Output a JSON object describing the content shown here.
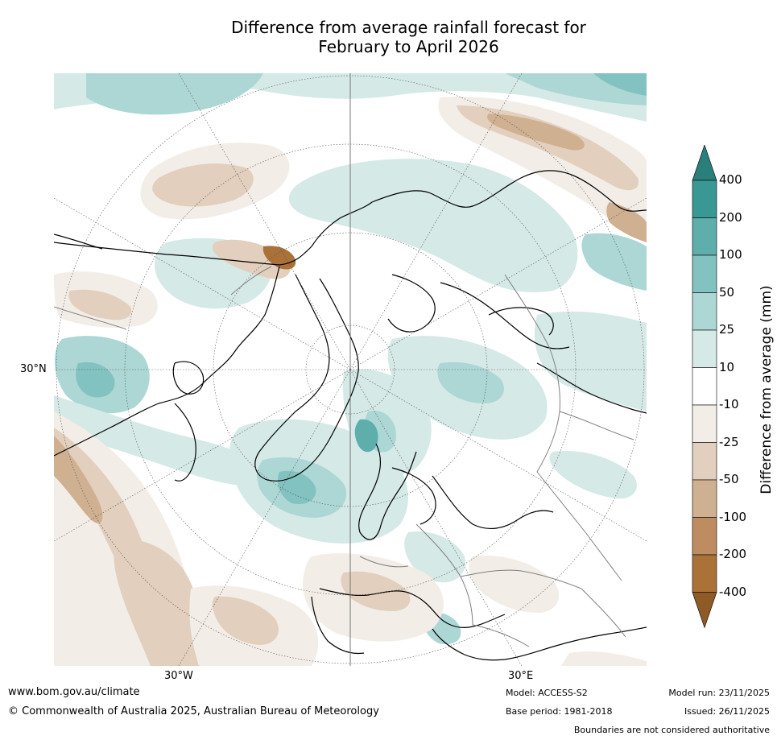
{
  "title": {
    "line1": "Difference from average rainfall forecast for",
    "line2": "February to April 2026"
  },
  "map": {
    "projection": "north-polar-stereographic",
    "lat_label": "30°N",
    "lon_labels": [
      "30°W",
      "30°E"
    ]
  },
  "colorbar": {
    "title": "Difference from average (mm)",
    "ticks": [
      "400",
      "200",
      "100",
      "50",
      "25",
      "10",
      "-10",
      "-25",
      "-50",
      "-100",
      "-200",
      "-400"
    ],
    "bins": [
      {
        "range": ">400",
        "color": "#2a7f7a"
      },
      {
        "range": "200–400",
        "color": "#3a9894"
      },
      {
        "range": "100–200",
        "color": "#5eaeac"
      },
      {
        "range": "50–100",
        "color": "#82c2c0"
      },
      {
        "range": "25–50",
        "color": "#acd7d5"
      },
      {
        "range": "10–25",
        "color": "#d5e9e7"
      },
      {
        "range": "-10–10",
        "color": "#ffffff"
      },
      {
        "range": "-25–-10",
        "color": "#f2ede7"
      },
      {
        "range": "-50–-25",
        "color": "#e2cfbd"
      },
      {
        "range": "-100–-50",
        "color": "#cfb091"
      },
      {
        "range": "-200–-100",
        "color": "#bd8c60"
      },
      {
        "range": "-400–-200",
        "color": "#aa7239"
      },
      {
        "range": "<-400",
        "color": "#8e5a25"
      }
    ]
  },
  "footer": {
    "website": "www.bom.gov.au/climate",
    "copyright": "© Commonwealth of Australia 2025, Australian Bureau of Meteorology",
    "model": "Model: ACCESS-S2",
    "base_period": "Base period: 1981-2018",
    "model_run": "Model run: 23/11/2025",
    "issued": "Issued: 26/11/2025",
    "disclaimer": "Boundaries are not considered authoritative"
  }
}
